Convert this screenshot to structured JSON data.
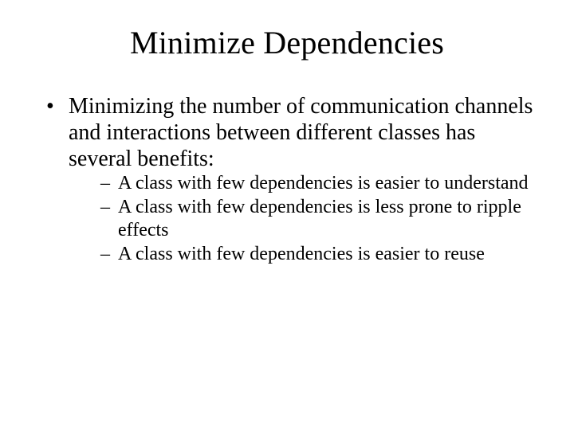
{
  "slide": {
    "title": "Minimize Dependencies",
    "title_fontsize": 40,
    "background_color": "#ffffff",
    "text_color": "#000000",
    "font_family": "Times New Roman",
    "bullets": [
      {
        "text": "Minimizing the number of communication channels and interactions between different classes has several benefits:",
        "fontsize": 28,
        "marker": "•",
        "sub": [
          {
            "text": "A class with few dependencies is easier to understand",
            "fontsize": 24,
            "marker": "–"
          },
          {
            "text": "A class with few dependencies is less prone to ripple effects",
            "fontsize": 24,
            "marker": "–"
          },
          {
            "text": "A class with few dependencies is easier to reuse",
            "fontsize": 24,
            "marker": "–"
          }
        ]
      }
    ]
  }
}
